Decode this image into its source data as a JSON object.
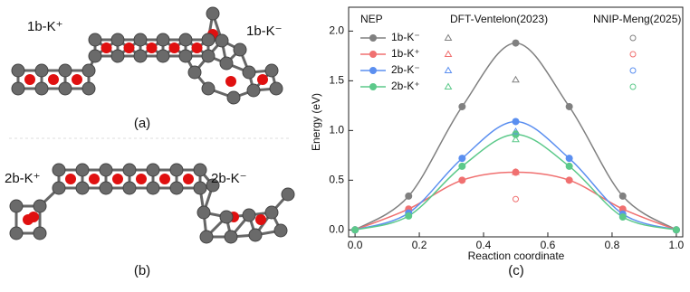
{
  "structures": [
    {
      "label_left": "1b-K⁺",
      "label_right": "1b-K⁻",
      "caption": "(a)"
    },
    {
      "label_left": "2b-K⁺",
      "label_right": "2b-K⁻",
      "caption": "(b)"
    }
  ],
  "chart_data": {
    "type": "line",
    "caption": "(c)",
    "xlabel": "Reaction coordinate",
    "ylabel": "Energy (eV)",
    "legend_title": "NEP",
    "x": [
      0,
      0.1667,
      0.3333,
      0.5,
      0.6667,
      0.8333,
      1.0
    ],
    "series": [
      {
        "name": "1b-K⁻",
        "color": "#808080",
        "values": [
          0,
          0.34,
          1.24,
          1.88,
          1.24,
          0.34,
          0
        ]
      },
      {
        "name": "1b-K⁺",
        "color": "#f07070",
        "values": [
          0,
          0.21,
          0.5,
          0.58,
          0.5,
          0.21,
          0
        ]
      },
      {
        "name": "2b-K⁻",
        "color": "#5b8ff0",
        "values": [
          0,
          0.17,
          0.72,
          1.09,
          0.72,
          0.16,
          0
        ]
      },
      {
        "name": "2b-K⁺",
        "color": "#5cc98a",
        "values": [
          0,
          0.14,
          0.64,
          0.96,
          0.64,
          0.13,
          0
        ]
      }
    ],
    "references": [
      {
        "name": "DFT-Ventelon(2023)",
        "marker": "triangle",
        "x": [
          0.5
        ],
        "series_values": [
          [
            1.51
          ],
          [
            0.58
          ],
          [
            0.99
          ],
          [
            0.91
          ]
        ]
      },
      {
        "name": "NNIP-Meng(2025)",
        "marker": "circle",
        "x": [
          0.5
        ],
        "series_values": [
          [
            1.88
          ],
          [
            0.31
          ],
          [
            1.09
          ],
          [
            0.97
          ]
        ]
      }
    ],
    "xlim": [
      -0.02,
      1.02
    ],
    "ylim": [
      -0.07,
      2.24
    ],
    "xticks": [
      {
        "value": 0,
        "label": "0.0"
      },
      {
        "value": 0.2,
        "label": "0.2"
      },
      {
        "value": 0.4,
        "label": "0.4"
      },
      {
        "value": 0.6,
        "label": "0.6"
      },
      {
        "value": 0.8,
        "label": "0.8"
      },
      {
        "value": 1,
        "label": "1.0"
      }
    ],
    "yticks": [
      {
        "value": 0,
        "label": "0.0"
      },
      {
        "value": 0.5,
        "label": "0.5"
      },
      {
        "value": 1,
        "label": "1.0"
      },
      {
        "value": 1.5,
        "label": "1.5"
      },
      {
        "value": 2,
        "label": "2.0"
      }
    ]
  }
}
